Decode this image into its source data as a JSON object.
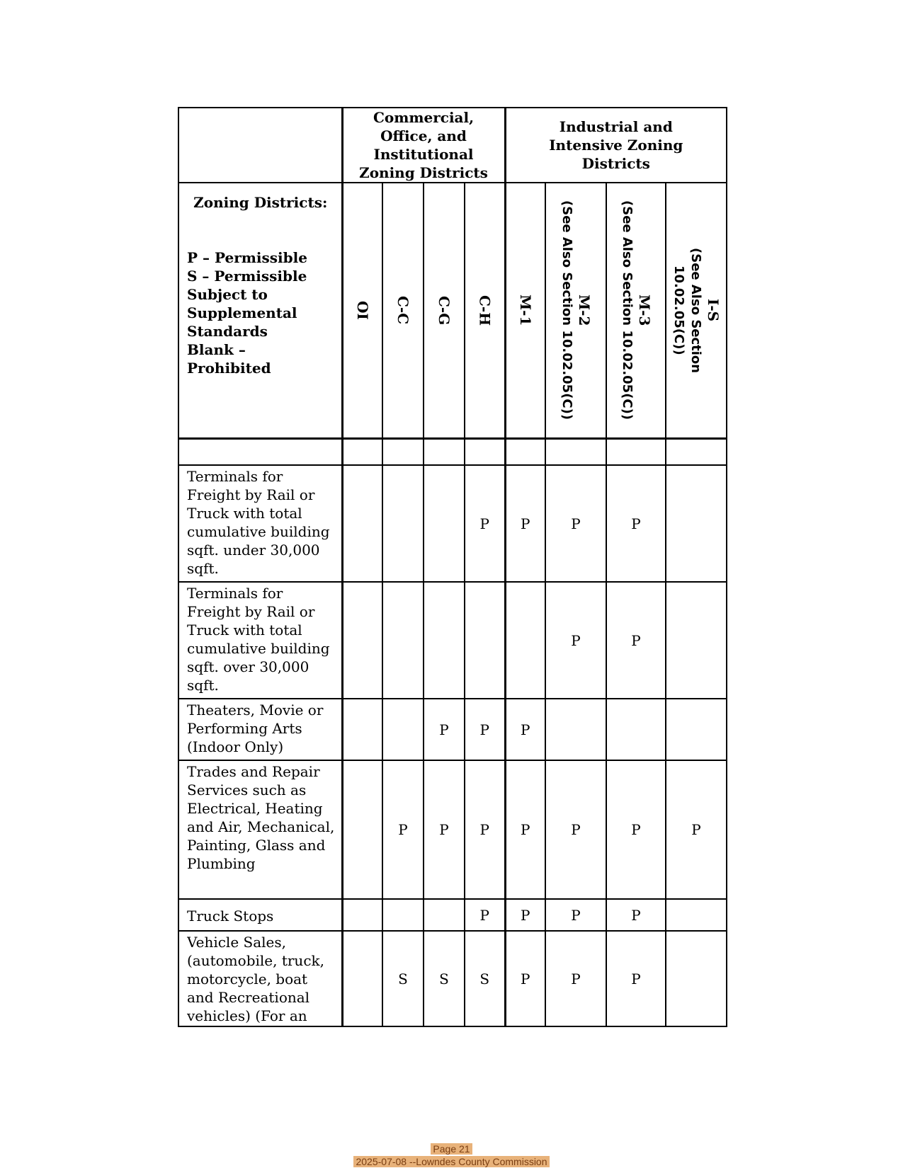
{
  "header": {
    "group_commercial": "Commercial, Office, and Institutional Zoning Districts",
    "group_industrial": "Industrial and Intensive Zoning Districts",
    "legend_title": "Zoning Districts:",
    "legend_lines": [
      "P – Permissible",
      "S – Permissible Subject to Supplemental Standards",
      "Blank – Prohibited"
    ],
    "columns": [
      {
        "code": "OI",
        "note": ""
      },
      {
        "code": "C-C",
        "note": ""
      },
      {
        "code": "C-G",
        "note": ""
      },
      {
        "code": "C-H",
        "note": ""
      },
      {
        "code": "M-1",
        "note": ""
      },
      {
        "code": "M-2",
        "note": "(See Also Section 10.02.05(C))"
      },
      {
        "code": "M-3",
        "note": "(See Also Section 10.02.05(C))"
      },
      {
        "code": "I-S",
        "note": "(See Also Section 10.02.05(C))"
      }
    ]
  },
  "rows": [
    {
      "use": "Terminals for Freight by Rail or Truck with total cumulative building sqft. under 30,000 sqft.",
      "values": [
        "",
        "",
        "",
        "P",
        "P",
        "P",
        "P",
        ""
      ]
    },
    {
      "use": "Terminals for Freight by Rail or Truck with total cumulative building sqft. over 30,000 sqft.",
      "values": [
        "",
        "",
        "",
        "",
        "",
        "P",
        "P",
        ""
      ]
    },
    {
      "use": "Theaters, Movie or Performing Arts (Indoor Only)",
      "values": [
        "",
        "",
        "P",
        "P",
        "P",
        "",
        "",
        ""
      ]
    },
    {
      "use": "Trades and Repair Services such as Electrical, Heating and Air, Mechanical, Painting, Glass and Plumbing",
      "values": [
        "",
        "P",
        "P",
        "P",
        "P",
        "P",
        "P",
        "P"
      ]
    },
    {
      "use": "Truck Stops",
      "values": [
        "",
        "",
        "",
        "P",
        "P",
        "P",
        "P",
        ""
      ]
    },
    {
      "use": "Vehicle Sales, (automobile, truck, motorcycle, boat and Recreational vehicles) (For an “S”",
      "values": [
        "",
        "S",
        "S",
        "S",
        "P",
        "P",
        "P",
        ""
      ]
    }
  ],
  "footer": {
    "page": "Page 21",
    "stamp": "2025-07-08 --Lowndes County Commission"
  }
}
